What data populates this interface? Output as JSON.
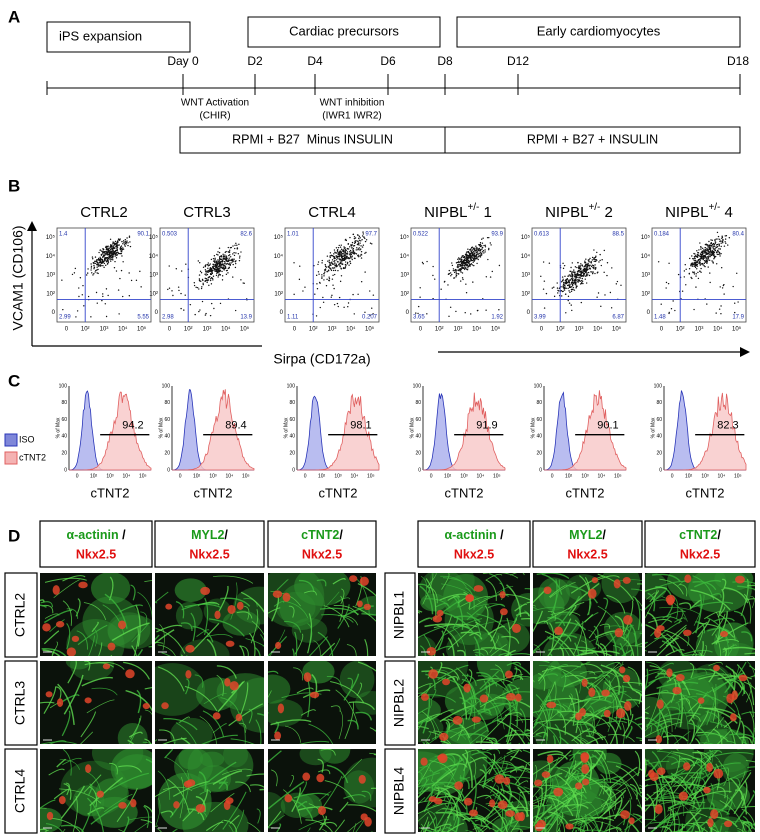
{
  "panel_a": {
    "label": "A",
    "phases": [
      "iPS expansion",
      "Cardiac precursors",
      "Early cardiomyocytes"
    ],
    "days": [
      "Day 0",
      "D2",
      "D4",
      "D6",
      "D8",
      "D12",
      "D18"
    ],
    "annotations": [
      {
        "line1": "WNT Activation",
        "line2": "(CHIR)"
      },
      {
        "line1": "WNT inhibition",
        "line2": "(IWR1 IWR2)"
      }
    ],
    "media": [
      "RPMI + B27  Minus INSULIN",
      "RPMI + B27 + INSULIN"
    ]
  },
  "panel_b": {
    "label": "B",
    "y_axis_label": "VCAM1 (CD106)",
    "x_axis_label": "Sirpa (CD172a)",
    "axis_ticks": [
      "0",
      "10²",
      "10³",
      "10⁴",
      "10⁵"
    ],
    "plots": [
      {
        "title": {
          "base": "CTRL2"
        },
        "quadrants": {
          "ul": "1.4",
          "ur": "90.1",
          "ll": "2.99",
          "lr": "5.55"
        }
      },
      {
        "title": {
          "base": "CTRL3"
        },
        "quadrants": {
          "ul": "0.503",
          "ur": "82.6",
          "ll": "2.98",
          "lr": "13.9"
        }
      },
      {
        "title": {
          "base": "CTRL4"
        },
        "quadrants": {
          "ul": "1.01",
          "ur": "97.7",
          "ll": "1.11",
          "lr": "0.207"
        }
      },
      {
        "title": {
          "base": "NIPBL",
          "sup": "+/-",
          "suffix": " 1"
        },
        "quadrants": {
          "ul": "0.522",
          "ur": "93.9",
          "ll": "3.65",
          "lr": "1.92"
        }
      },
      {
        "title": {
          "base": "NIPBL",
          "sup": "+/-",
          "suffix": " 2"
        },
        "quadrants": {
          "ul": "0.613",
          "ur": "88.5",
          "ll": "3.99",
          "lr": "6.87"
        }
      },
      {
        "title": {
          "base": "NIPBL",
          "sup": "+/-",
          "suffix": " 4"
        },
        "quadrants": {
          "ul": "0.184",
          "ur": "80.4",
          "ll": "1.48",
          "lr": "17.9"
        }
      }
    ]
  },
  "panel_c": {
    "label": "C",
    "legend": [
      "ISO",
      "cTNT2"
    ],
    "y_axis_label": "% of Max",
    "y_ticks": [
      "0",
      "20",
      "40",
      "60",
      "80",
      "100"
    ],
    "x_axis_label": "cTNT2",
    "values": [
      "94.2",
      "89.4",
      "98.1",
      "91.9",
      "90.1",
      "82.3"
    ]
  },
  "panel_d": {
    "label": "D",
    "headers": [
      {
        "marker": "α-actinin",
        "separator": " /",
        "nucleus": "Nkx2.5"
      },
      {
        "marker": "MYL2",
        "separator": "/",
        "nucleus": "Nkx2.5"
      },
      {
        "marker": "cTNT2",
        "separator": "/",
        "nucleus": "Nkx2.5"
      }
    ],
    "groups": [
      {
        "rows": [
          "CTRL2",
          "CTRL3",
          "CTRL4"
        ]
      },
      {
        "rows": [
          "NIPBL1",
          "NIPBL2",
          "NIPBL4"
        ]
      }
    ]
  }
}
